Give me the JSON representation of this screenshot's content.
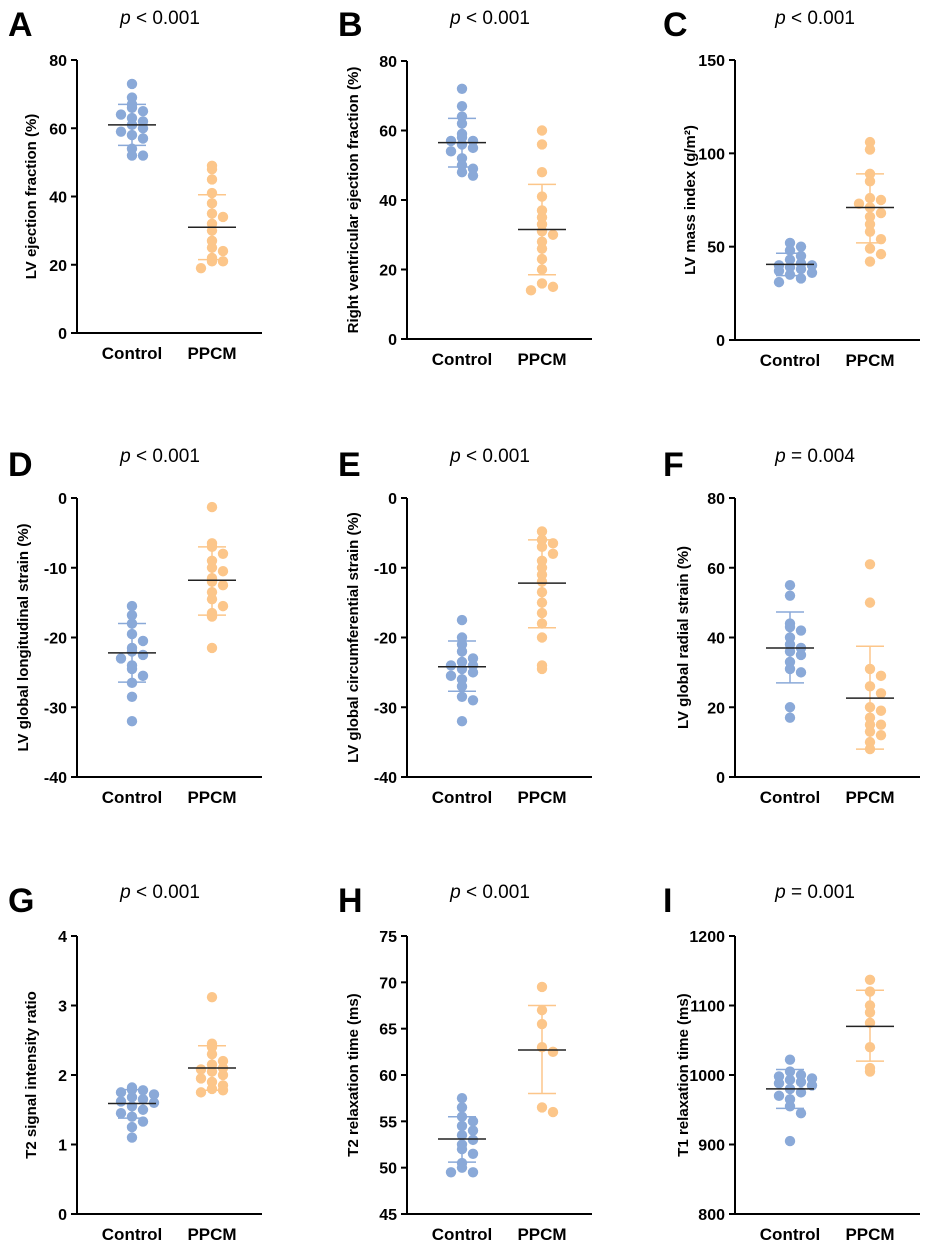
{
  "colors": {
    "control": "#8aa9d8",
    "ppcm": "#fcc68a",
    "axis": "#000000",
    "mean_line": "#222222"
  },
  "chart_data": [
    {
      "panel": "A",
      "type": "scatter",
      "p_prefix": "p",
      "p_rest": " < 0.001",
      "ylabel": "LV ejection fraction (%)",
      "ylim": [
        0,
        80
      ],
      "yticks": [
        0,
        20,
        40,
        60,
        80
      ],
      "ytick_labels": [
        "0",
        "20",
        "40",
        "60",
        "80"
      ],
      "categories": [
        "Control",
        "PPCM"
      ],
      "series": [
        {
          "name": "Control",
          "mean": 61,
          "err_low": 55,
          "err_high": 67,
          "values": [
            73,
            69,
            67,
            66,
            65,
            64,
            63,
            62,
            61,
            60,
            59,
            58,
            57,
            54,
            52,
            52
          ]
        },
        {
          "name": "PPCM",
          "mean": 31,
          "err_low": 21.5,
          "err_high": 40.5,
          "values": [
            49,
            48,
            45,
            41,
            38,
            35,
            34,
            32,
            30,
            27,
            25,
            24,
            22,
            21,
            21,
            19
          ]
        }
      ]
    },
    {
      "panel": "B",
      "type": "scatter",
      "p_prefix": "p",
      "p_rest": " < 0.001",
      "ylabel": "Right ventricular ejection fraction (%)",
      "ylim": [
        0,
        80
      ],
      "yticks": [
        0,
        20,
        40,
        60,
        80
      ],
      "ytick_labels": [
        "0",
        "20",
        "40",
        "60",
        "80"
      ],
      "categories": [
        "Control",
        "PPCM"
      ],
      "series": [
        {
          "name": "Control",
          "mean": 56.5,
          "err_low": 49.5,
          "err_high": 63.5,
          "values": [
            72,
            67,
            64,
            62,
            59,
            58,
            57,
            57,
            56,
            55,
            54,
            52,
            50,
            49,
            48,
            47
          ]
        },
        {
          "name": "PPCM",
          "mean": 31.5,
          "err_low": 18.5,
          "err_high": 44.5,
          "values": [
            60,
            56,
            48,
            41,
            37,
            35,
            33,
            31,
            30,
            28,
            26,
            23,
            20,
            16,
            15,
            14
          ]
        }
      ]
    },
    {
      "panel": "C",
      "type": "scatter",
      "p_prefix": "p",
      "p_rest": " < 0.001",
      "ylabel": "LV mass index (g/m²)",
      "ylim": [
        0,
        150
      ],
      "yticks": [
        0,
        50,
        100,
        150
      ],
      "ytick_labels": [
        "0",
        "50",
        "100",
        "150"
      ],
      "categories": [
        "Control",
        "PPCM"
      ],
      "series": [
        {
          "name": "Control",
          "mean": 40.5,
          "err_low": 34.5,
          "err_high": 46.5,
          "values": [
            52,
            50,
            48,
            45,
            43,
            41,
            40,
            40,
            39,
            38,
            37,
            36,
            35,
            33,
            31
          ]
        },
        {
          "name": "PPCM",
          "mean": 71,
          "err_low": 52,
          "err_high": 89,
          "values": [
            106,
            102,
            89,
            85,
            76,
            75,
            73,
            71,
            68,
            66,
            62,
            58,
            54,
            49,
            46,
            42
          ]
        }
      ]
    },
    {
      "panel": "D",
      "type": "scatter",
      "p_prefix": "p",
      "p_rest": " < 0.001",
      "ylabel": "LV global longitudinal strain (%)",
      "ylim": [
        -40,
        0
      ],
      "yticks": [
        -40,
        -30,
        -20,
        -10,
        0
      ],
      "ytick_labels": [
        "-40",
        "-30",
        "-20",
        "-10",
        "0"
      ],
      "categories": [
        "Control",
        "PPCM"
      ],
      "series": [
        {
          "name": "Control",
          "mean": -22.2,
          "err_low": -26.4,
          "err_high": -18.0,
          "values": [
            -15.5,
            -16.8,
            -18.0,
            -19.5,
            -20.5,
            -21.5,
            -22.0,
            -22.5,
            -23.0,
            -24.0,
            -24.5,
            -25.5,
            -26.5,
            -28.5,
            -32.0
          ]
        },
        {
          "name": "PPCM",
          "mean": -11.8,
          "err_low": -16.8,
          "err_high": -7.0,
          "values": [
            -1.3,
            -6.5,
            -7.0,
            -8.0,
            -9.0,
            -10.0,
            -10.5,
            -11.5,
            -12.0,
            -12.5,
            -13.5,
            -14.5,
            -15.5,
            -16.5,
            -17.0,
            -21.5
          ]
        }
      ]
    },
    {
      "panel": "E",
      "type": "scatter",
      "p_prefix": "p",
      "p_rest": " < 0.001",
      "ylabel": "LV global circumferential strain (%)",
      "ylim": [
        -40,
        0
      ],
      "yticks": [
        -40,
        -30,
        -20,
        -10,
        0
      ],
      "ytick_labels": [
        "-40",
        "-30",
        "-20",
        "-10",
        "0"
      ],
      "categories": [
        "Control",
        "PPCM"
      ],
      "series": [
        {
          "name": "Control",
          "mean": -24.2,
          "err_low": -27.7,
          "err_high": -20.5,
          "values": [
            -17.5,
            -20.0,
            -21.0,
            -22.0,
            -23.0,
            -23.5,
            -24.0,
            -24.0,
            -24.5,
            -25.0,
            -25.5,
            -26.0,
            -27.0,
            -28.5,
            -29.0,
            -32.0
          ]
        },
        {
          "name": "PPCM",
          "mean": -12.2,
          "err_low": -18.6,
          "err_high": -6.0,
          "values": [
            -4.8,
            -6.0,
            -6.5,
            -7.0,
            -8.0,
            -9.0,
            -10.0,
            -11.0,
            -12.0,
            -13.5,
            -15.0,
            -16.5,
            -18.0,
            -20.0,
            -24.0,
            -24.5
          ]
        }
      ]
    },
    {
      "panel": "F",
      "type": "scatter",
      "p_prefix": "p",
      "p_rest": " = 0.004",
      "ylabel": "LV global radial strain (%)",
      "ylim": [
        0,
        80
      ],
      "yticks": [
        0,
        20,
        40,
        60,
        80
      ],
      "ytick_labels": [
        "0",
        "20",
        "40",
        "60",
        "80"
      ],
      "categories": [
        "Control",
        "PPCM"
      ],
      "series": [
        {
          "name": "Control",
          "mean": 37,
          "err_low": 27,
          "err_high": 47.3,
          "values": [
            55,
            52,
            44,
            43,
            42,
            40,
            38,
            37,
            36,
            35,
            33,
            31,
            30,
            20,
            17
          ]
        },
        {
          "name": "PPCM",
          "mean": 22.6,
          "err_low": 8.0,
          "err_high": 37.5,
          "values": [
            61,
            50,
            31,
            29,
            26,
            24,
            20,
            19,
            17,
            15,
            15,
            13,
            12,
            10,
            8
          ]
        }
      ]
    },
    {
      "panel": "G",
      "type": "scatter",
      "p_prefix": "p",
      "p_rest": " < 0.001",
      "ylabel": "T2 signal intensity ratio",
      "ylim": [
        0,
        4
      ],
      "yticks": [
        0,
        1,
        2,
        3,
        4
      ],
      "ytick_labels": [
        "0",
        "1",
        "2",
        "3",
        "4"
      ],
      "categories": [
        "Control",
        "PPCM"
      ],
      "series": [
        {
          "name": "Control",
          "mean": 1.59,
          "err_low": 1.38,
          "err_high": 1.79,
          "values": [
            1.82,
            1.79,
            1.78,
            1.75,
            1.72,
            1.68,
            1.65,
            1.62,
            1.6,
            1.55,
            1.5,
            1.45,
            1.4,
            1.33,
            1.25,
            1.1
          ]
        },
        {
          "name": "PPCM",
          "mean": 2.1,
          "err_low": 1.78,
          "err_high": 2.42,
          "values": [
            3.12,
            2.45,
            2.4,
            2.3,
            2.2,
            2.15,
            2.1,
            2.08,
            2.05,
            2.0,
            1.95,
            1.9,
            1.85,
            1.8,
            1.78,
            1.75
          ]
        }
      ]
    },
    {
      "panel": "H",
      "type": "scatter",
      "p_prefix": "p",
      "p_rest": " < 0.001",
      "ylabel": "T2 relaxation time (ms)",
      "ylim": [
        45,
        75
      ],
      "yticks": [
        45,
        50,
        55,
        60,
        65,
        70,
        75
      ],
      "ytick_labels": [
        "45",
        "50",
        "55",
        "60",
        "65",
        "70",
        "75"
      ],
      "categories": [
        "Control",
        "PPCM"
      ],
      "series": [
        {
          "name": "Control",
          "mean": 53.1,
          "err_low": 50.6,
          "err_high": 55.5,
          "values": [
            57.5,
            56.5,
            55.5,
            55.0,
            54.5,
            54.0,
            53.5,
            53.0,
            52.5,
            52.0,
            51.5,
            50.5,
            50.0,
            49.5,
            49.5
          ]
        },
        {
          "name": "PPCM",
          "mean": 62.7,
          "err_low": 58.0,
          "err_high": 67.5,
          "values": [
            69.5,
            67.0,
            65.5,
            63.0,
            62.5,
            56.5,
            56.0
          ]
        }
      ]
    },
    {
      "panel": "I",
      "type": "scatter",
      "p_prefix": "p",
      "p_rest": " = 0.001",
      "ylabel": "T1 relaxation time (ms)",
      "ylim": [
        800,
        1200
      ],
      "yticks": [
        800,
        900,
        1000,
        1100,
        1200
      ],
      "ytick_labels": [
        "800",
        "900",
        "1000",
        "1100",
        "1200"
      ],
      "categories": [
        "Control",
        "PPCM"
      ],
      "series": [
        {
          "name": "Control",
          "mean": 980,
          "err_low": 952,
          "err_high": 1008,
          "values": [
            1022,
            1005,
            1000,
            998,
            995,
            993,
            990,
            988,
            985,
            980,
            975,
            970,
            965,
            955,
            945,
            905
          ]
        },
        {
          "name": "PPCM",
          "mean": 1070,
          "err_low": 1020,
          "err_high": 1122,
          "values": [
            1137,
            1120,
            1100,
            1090,
            1075,
            1040,
            1010,
            1005
          ]
        }
      ]
    }
  ]
}
